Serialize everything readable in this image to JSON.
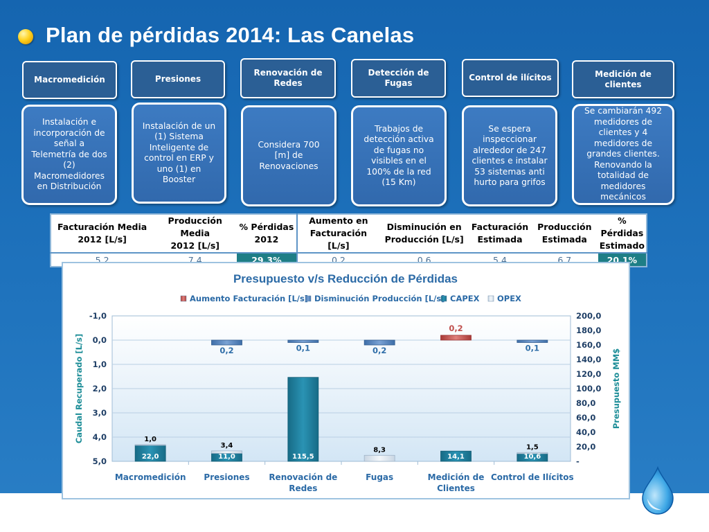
{
  "title": "Plan de pérdidas 2014: Las Canelas",
  "colors": {
    "background": "#1f6fb9",
    "header_box": "#2b5f95",
    "desc_box": "#3a75bb",
    "highlight_cell": "#1e7e86"
  },
  "headers": [
    "Macromedición",
    "Presiones",
    "Renovación de Redes",
    "Detección de Fugas",
    "Control de ilícitos",
    "Medición de clientes"
  ],
  "descriptions": [
    "Instalación e incorporación de señal a Telemetría de dos (2) Macromedidores en Distribución",
    "Instalación de un (1) Sistema Inteligente de control en ERP y uno (1) en Booster",
    "Considera 700 [m] de Renovaciones",
    "Trabajos de detección activa de fugas no visibles en el 100% de la red (15 Km)",
    "Se espera inspeccionar alrededor de 247 clientes  e instalar 53 sistemas anti hurto para grifos",
    "Se cambiarán 492 medidores de clientes y 4 medidores de grandes clientes. Renovando la totalidad de medidores mecánicos"
  ],
  "table": {
    "headers": [
      [
        "Facturación Media",
        "2012 [L/s]"
      ],
      [
        "Producción Media",
        "2012 [L/s]"
      ],
      [
        "% Pérdidas",
        "2012"
      ],
      [
        "Aumento en",
        "Facturación [L/s]"
      ],
      [
        "Disminución en",
        "Producción [L/s]"
      ],
      [
        "Facturación",
        "Estimada"
      ],
      [
        "Producción",
        "Estimada"
      ],
      [
        "% Pérdidas",
        "Estimado"
      ]
    ],
    "values": [
      "5,2",
      "7,4",
      "29,3%",
      "0,2",
      "0,6",
      "5,4",
      "6,7",
      "20,1%"
    ]
  },
  "chart_data": {
    "type": "bar",
    "title": "Presupuesto v/s Reducción de Pérdidas",
    "categories": [
      "Macromedición",
      "Presiones",
      "Renovación de Redes",
      "Fugas",
      "Medición de Clientes",
      "Control de Ilícitos"
    ],
    "legend": [
      "Aumento Facturación [L/s]",
      "Disminución Producción [L/s]",
      "CAPEX",
      "OPEX"
    ],
    "legend_position": "top",
    "ylabel_left": "Caudal Recuperado [L/s]",
    "ylabel_right": "Presupuesto MM$",
    "ylim_left": [
      -1.0,
      5.0
    ],
    "left_axis_inverted": true,
    "ylim_right": [
      0,
      200
    ],
    "left_ticks": [
      "-1,0",
      "0,0",
      "1,0",
      "2,0",
      "3,0",
      "4,0",
      "5,0"
    ],
    "right_ticks": [
      "200,0",
      "180,0",
      "160,0",
      "140,0",
      "120,0",
      "100,0",
      "80,0",
      "60,0",
      "40,0",
      "20,0",
      "-"
    ],
    "grid": true,
    "colors": {
      "aumento": "#c0504d",
      "disminucion": "#4f81bd",
      "capex": "#1f7f9e",
      "opex": "#dde6ef"
    },
    "series": [
      {
        "name": "Aumento Facturación [L/s]",
        "axis": "left",
        "values": [
          null,
          null,
          null,
          null,
          0.2,
          null
        ],
        "labels": [
          "",
          "",
          "",
          "",
          "0,2",
          ""
        ]
      },
      {
        "name": "Disminución Producción [L/s]",
        "axis": "left",
        "values": [
          null,
          0.2,
          0.1,
          0.2,
          null,
          0.1
        ],
        "labels": [
          "",
          "0,2",
          "0,1",
          "0,2",
          "",
          "0,1"
        ]
      },
      {
        "name": "CAPEX",
        "axis": "right",
        "values": [
          22.0,
          11.0,
          115.5,
          0,
          14.1,
          10.6
        ],
        "labels": [
          "22,0",
          "11,0",
          "115,5",
          "",
          "14,1",
          "10,6"
        ]
      },
      {
        "name": "OPEX",
        "axis": "right",
        "values": [
          1.0,
          3.4,
          0,
          8.3,
          0,
          1.5
        ],
        "labels": [
          "1,0",
          "3,4",
          "",
          "8,3",
          "",
          "1,5"
        ]
      }
    ]
  }
}
